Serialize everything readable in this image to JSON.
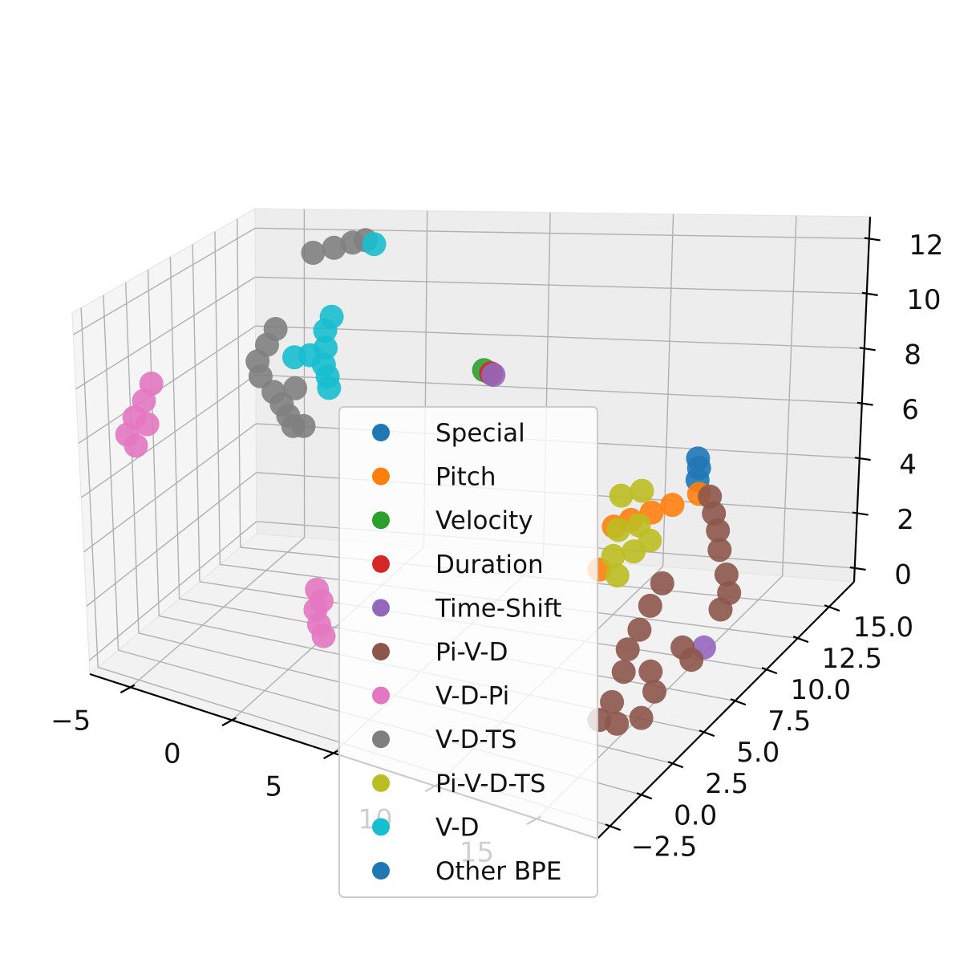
{
  "chart_data": {
    "type": "scatter",
    "projection": "3d",
    "grid": true,
    "legend_position": "center",
    "x_ticks": [
      "−5",
      "0",
      "5",
      "10",
      "15"
    ],
    "x_tick_values": [
      -5,
      0,
      5,
      10,
      15
    ],
    "y_ticks": [
      "−2.5",
      "0.0",
      "2.5",
      "5.0",
      "7.5",
      "10.0",
      "12.5",
      "15.0"
    ],
    "y_tick_values": [
      -2.5,
      0,
      2.5,
      5,
      7.5,
      10,
      12.5,
      15
    ],
    "z_ticks": [
      "0",
      "2",
      "4",
      "6",
      "8",
      "10",
      "12"
    ],
    "z_tick_values": [
      0,
      2,
      4,
      6,
      8,
      10,
      12
    ],
    "xlim": [
      -7,
      18
    ],
    "ylim": [
      -3.5,
      17
    ],
    "zlim": [
      -0.5,
      12.8
    ],
    "series": [
      {
        "name": "Special",
        "color": "#1f77b4",
        "points": [
          [
            15.2,
            9.2,
            7.3
          ],
          [
            15.2,
            9.3,
            6.9
          ],
          [
            15.2,
            9.2,
            6.5
          ]
        ]
      },
      {
        "name": "Pitch",
        "color": "#ff7f0e",
        "points": [
          [
            12.3,
            7.8,
            5.0
          ],
          [
            13.0,
            7.9,
            5.3
          ],
          [
            13.8,
            8.1,
            5.6
          ],
          [
            14.6,
            8.3,
            5.9
          ],
          [
            15.6,
            8.6,
            6.3
          ],
          [
            12.2,
            6.8,
            3.8
          ]
        ]
      },
      {
        "name": "Velocity",
        "color": "#2ca02c",
        "points": [
          [
            4.3,
            12.6,
            8.2
          ]
        ]
      },
      {
        "name": "Duration",
        "color": "#d62728",
        "points": [
          [
            4.6,
            12.6,
            8.1
          ]
        ]
      },
      {
        "name": "Time-Shift",
        "color": "#9467bd",
        "points": [
          [
            4.7,
            12.6,
            8.05
          ],
          [
            16.5,
            7.6,
            1.2
          ]
        ]
      },
      {
        "name": "Pi-V-D",
        "color": "#8c564b",
        "points": [
          [
            15.7,
            9.3,
            5.9
          ],
          [
            16.0,
            9.1,
            5.4
          ],
          [
            16.3,
            8.9,
            4.9
          ],
          [
            16.5,
            8.7,
            4.3
          ],
          [
            17.1,
            8.2,
            3.7
          ],
          [
            17.4,
            7.9,
            3.2
          ],
          [
            17.2,
            7.6,
            2.7
          ],
          [
            14.8,
            7.2,
            3.5
          ],
          [
            14.6,
            6.6,
            2.9
          ],
          [
            14.4,
            6.1,
            2.2
          ],
          [
            14.2,
            5.5,
            1.7
          ],
          [
            14.3,
            5.0,
            1.1
          ],
          [
            15.2,
            5.6,
            1.0
          ],
          [
            15.6,
            5.2,
            0.5
          ],
          [
            14.1,
            4.4,
            0.2
          ],
          [
            16.3,
            6.2,
            1.8
          ],
          [
            16.6,
            6.4,
            1.3
          ],
          [
            13.8,
            3.9,
            -0.3
          ],
          [
            14.5,
            4.1,
            -0.4
          ],
          [
            15.4,
            4.5,
            -0.2
          ]
        ]
      },
      {
        "name": "V-D-Pi",
        "color": "#e377c2",
        "points": [
          [
            -6.2,
            3.0,
            9.0
          ],
          [
            -6.4,
            2.6,
            8.4
          ],
          [
            -6.7,
            2.2,
            7.8
          ],
          [
            -6.9,
            1.8,
            7.2
          ],
          [
            -6.6,
            2.0,
            6.8
          ],
          [
            -6.2,
            2.4,
            7.6
          ],
          [
            1.9,
            1.5,
            3.2
          ],
          [
            2.0,
            1.1,
            2.6
          ],
          [
            2.3,
            0.8,
            2.2
          ],
          [
            2.6,
            0.6,
            1.9
          ],
          [
            2.2,
            1.3,
            2.9
          ]
        ]
      },
      {
        "name": "V-D-TS",
        "color": "#7f7f7f",
        "points": [
          [
            -2.8,
            12.3,
            12.3
          ],
          [
            -2.0,
            12.5,
            12.5
          ],
          [
            -1.3,
            12.7,
            12.7
          ],
          [
            -0.8,
            12.8,
            12.8
          ],
          [
            -3.0,
            8.8,
            10.2
          ],
          [
            -3.3,
            8.6,
            9.6
          ],
          [
            -3.6,
            8.3,
            9.0
          ],
          [
            -3.4,
            8.1,
            8.5
          ],
          [
            -2.8,
            8.0,
            8.0
          ],
          [
            -2.4,
            7.9,
            7.6
          ],
          [
            -2.0,
            7.6,
            7.3
          ],
          [
            -1.7,
            7.4,
            7.0
          ],
          [
            -1.2,
            7.3,
            7.1
          ],
          [
            -1.8,
            7.9,
            8.3
          ]
        ]
      },
      {
        "name": "Pi-V-D-TS",
        "color": "#bcbd22",
        "points": [
          [
            12.4,
            8.2,
            6.0
          ],
          [
            13.2,
            8.4,
            6.2
          ],
          [
            12.6,
            7.6,
            5.0
          ],
          [
            13.4,
            7.8,
            5.2
          ],
          [
            12.6,
            7.2,
            4.2
          ],
          [
            13.4,
            7.4,
            4.4
          ],
          [
            14.0,
            7.6,
            4.8
          ],
          [
            12.9,
            7.0,
            3.6
          ]
        ]
      },
      {
        "name": "V-D",
        "color": "#17becf",
        "points": [
          [
            -0.4,
            12.7,
            12.7
          ],
          [
            -0.9,
            9.6,
            10.7
          ],
          [
            -1.1,
            9.4,
            10.2
          ],
          [
            -1.0,
            9.2,
            9.6
          ],
          [
            -1.6,
            9.0,
            9.3
          ],
          [
            -2.2,
            8.8,
            9.2
          ],
          [
            -1.0,
            9.0,
            9.0
          ],
          [
            -0.8,
            8.9,
            8.6
          ],
          [
            -0.7,
            8.8,
            8.2
          ]
        ]
      },
      {
        "name": "Other BPE",
        "color": "#1f77b4",
        "points": []
      }
    ]
  }
}
